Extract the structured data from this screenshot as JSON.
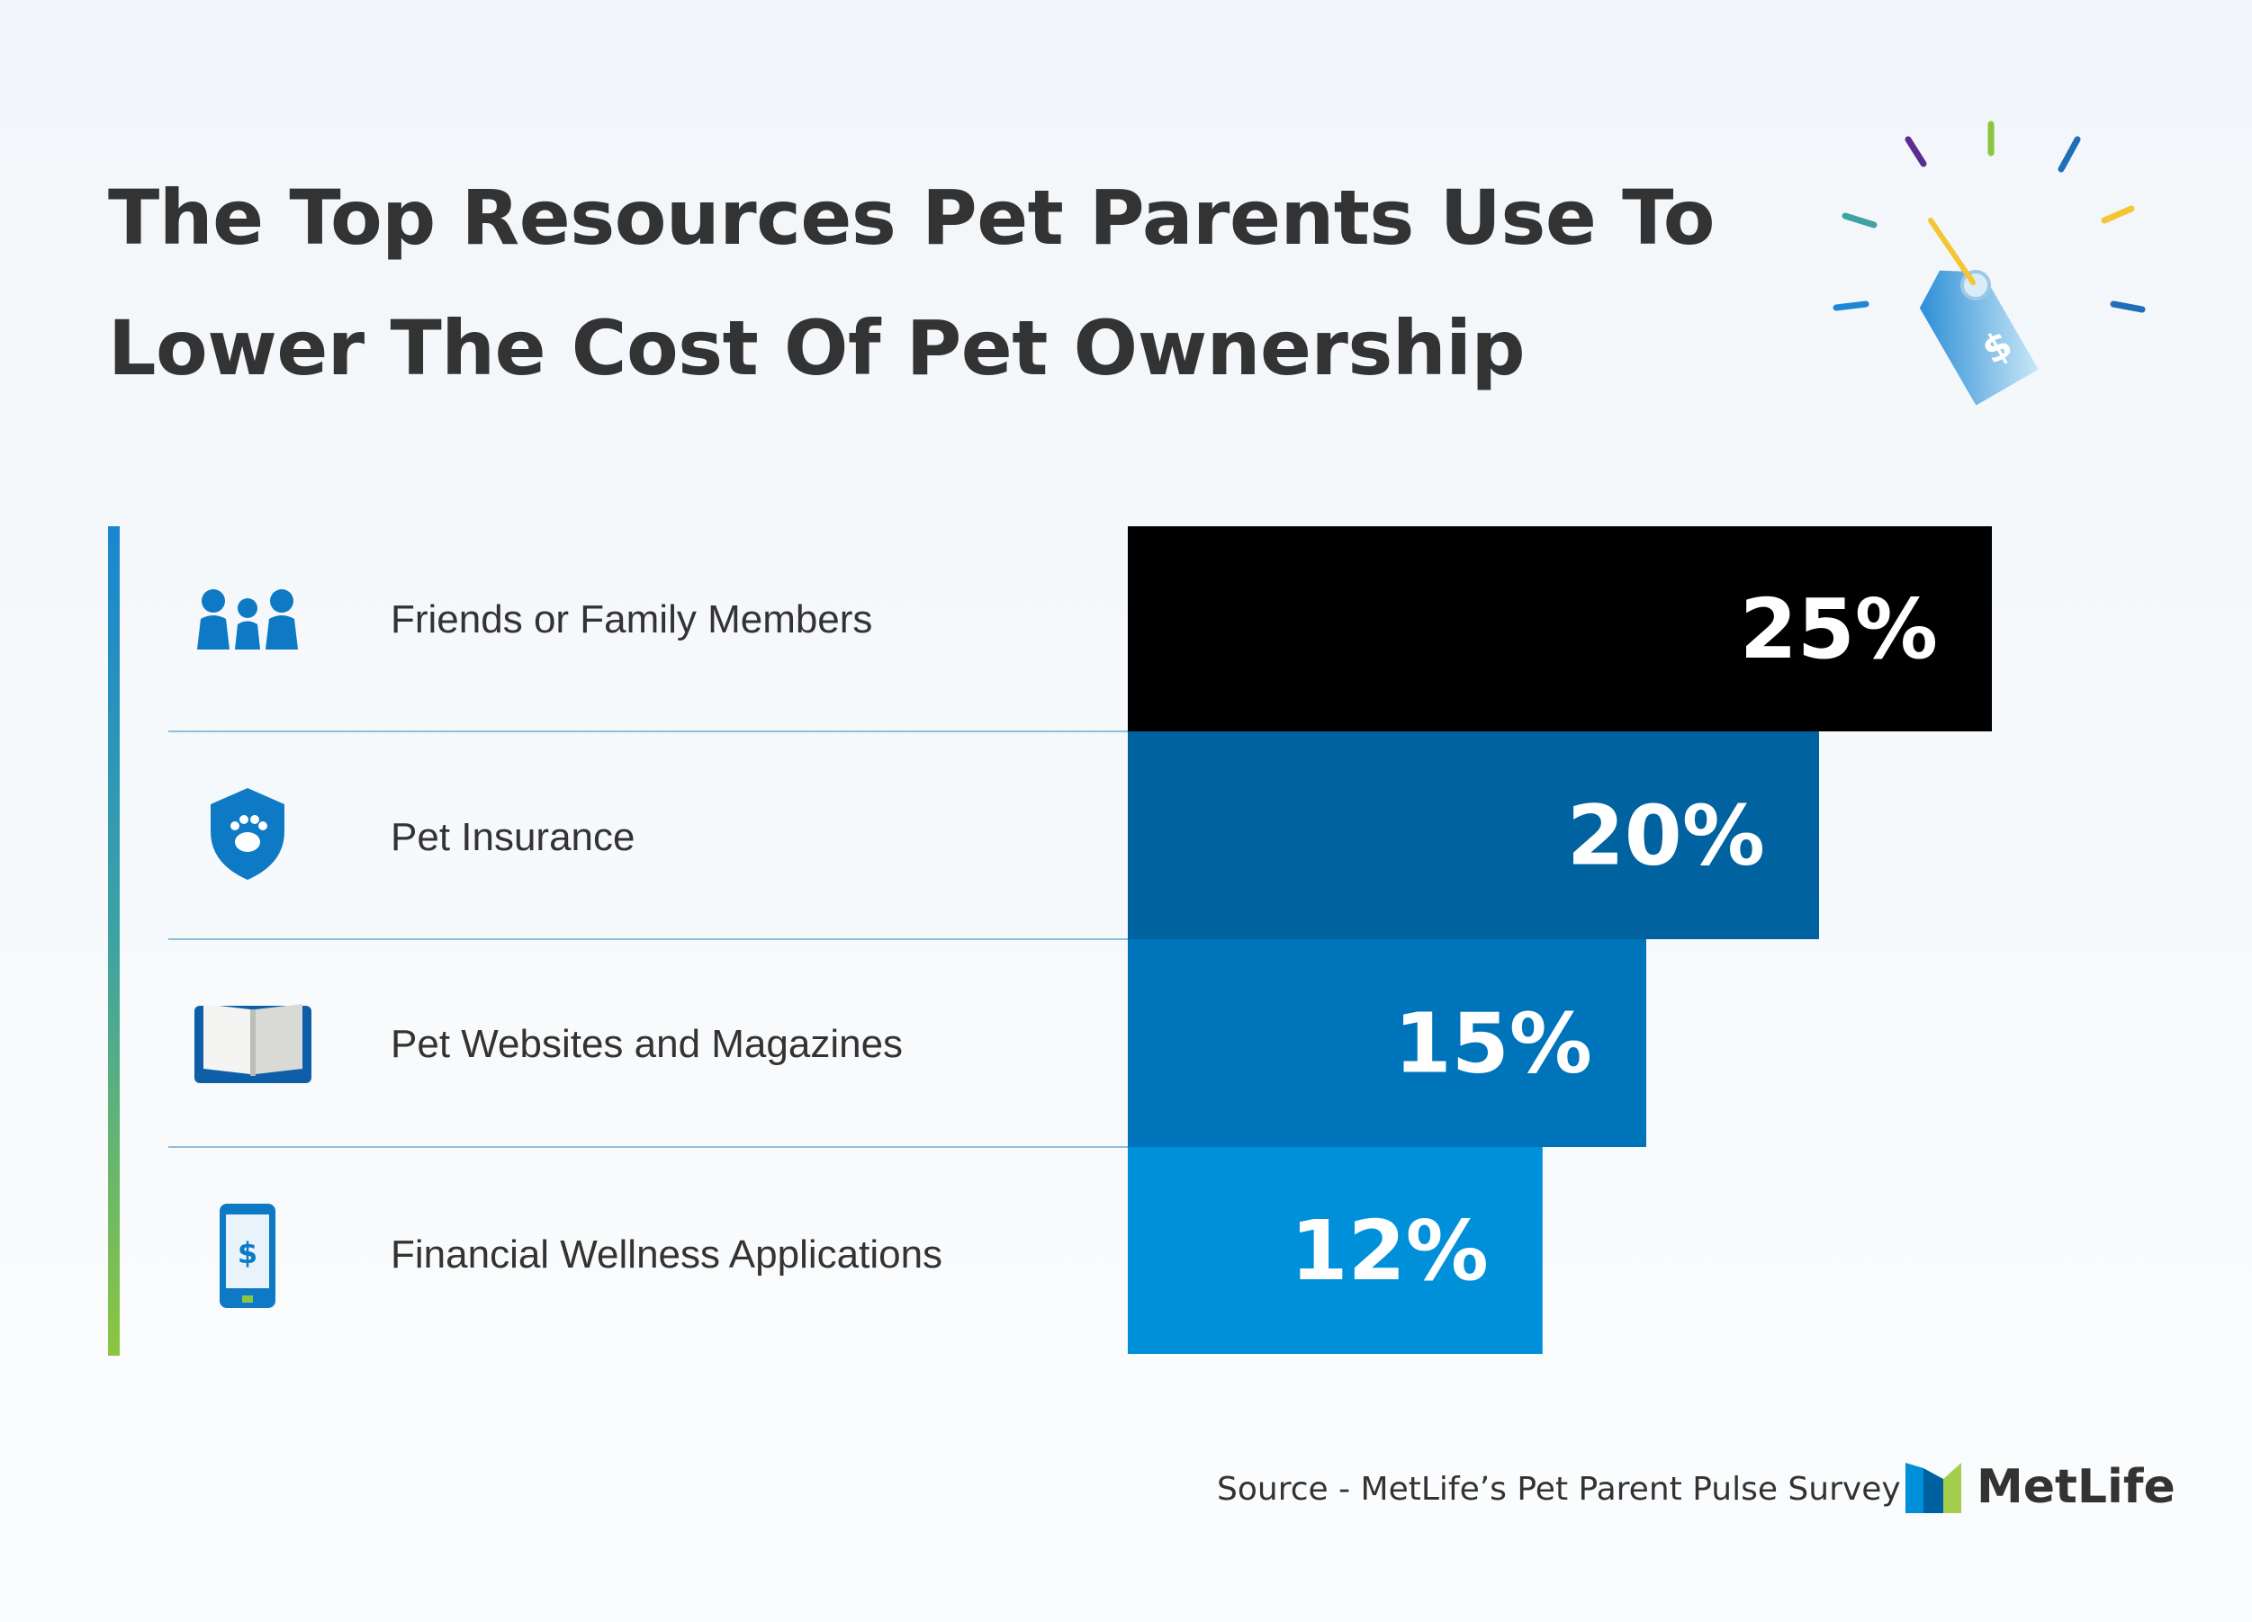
{
  "title": {
    "line1": "The Top Resources Pet Parents Use To",
    "line2": "Lower The Cost Of Pet Ownership"
  },
  "chart_data": {
    "type": "bar",
    "orientation": "horizontal",
    "categories": [
      "Friends or Family Members",
      "Pet Insurance",
      "Pet Websites and Magazines",
      "Financial Wellness Applications"
    ],
    "values": [
      25,
      20,
      15,
      12
    ],
    "data_labels": [
      "25%",
      "20%",
      "15%",
      "12%"
    ],
    "unit": "%",
    "bar_colors": [
      "#000000",
      "#00629f",
      "#0074bb",
      "#0090d9"
    ],
    "icons": [
      "people-icon",
      "shield-paw-icon",
      "open-book-icon",
      "smartphone-dollar-icon"
    ]
  },
  "footer": {
    "source": "Source - MetLife’s Pet Parent Pulse Survey",
    "brand": "MetLife"
  },
  "colors": {
    "icon_blue": "#0e79c4",
    "divider": "#8dbfd9",
    "title": "#333333"
  }
}
